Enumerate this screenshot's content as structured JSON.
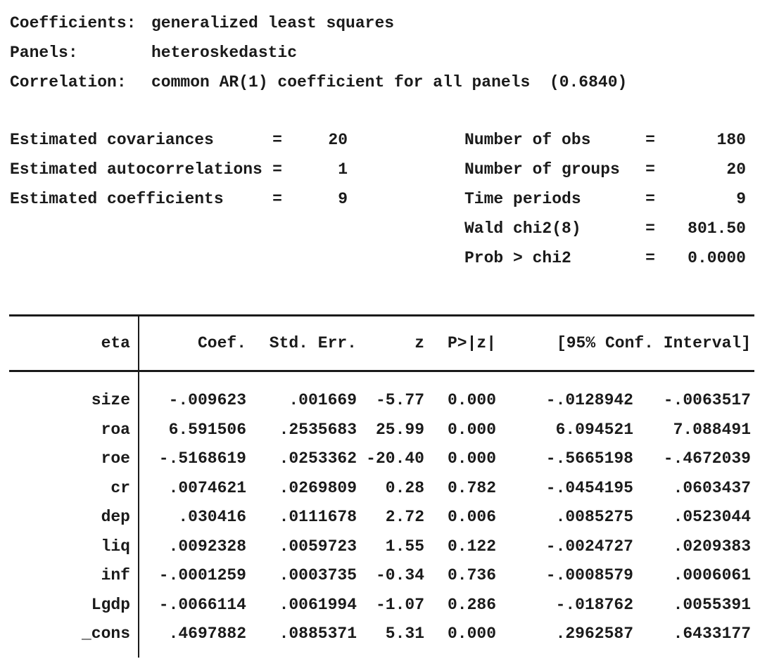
{
  "colors": {
    "text": "#1a1a1a",
    "background": "#ffffff",
    "rule": "#1a1a1a"
  },
  "spec": {
    "rows": [
      {
        "label": "Coefficients:",
        "value": "generalized least squares"
      },
      {
        "label": "Panels:",
        "value": "heteroskedastic"
      },
      {
        "label": "Correlation:",
        "value": "common AR(1) coefficient for all panels  (0.6840)"
      }
    ]
  },
  "stats": {
    "left": [
      {
        "label": "Estimated covariances",
        "eq": "=",
        "value": "20"
      },
      {
        "label": "Estimated autocorrelations",
        "eq": "=",
        "value": "1"
      },
      {
        "label": "Estimated coefficients",
        "eq": "=",
        "value": "9"
      }
    ],
    "right": [
      {
        "label": "Number of obs",
        "eq": "=",
        "value": "180"
      },
      {
        "label": "Number of groups",
        "eq": "=",
        "value": "20"
      },
      {
        "label": "Time periods",
        "eq": "=",
        "value": "9"
      },
      {
        "label": "Wald chi2(8)",
        "eq": "=",
        "value": "801.50"
      },
      {
        "label": "Prob > chi2",
        "eq": "=",
        "value": "0.0000"
      }
    ]
  },
  "table": {
    "depvar": "eta",
    "columns": {
      "coef": "Coef.",
      "stderr": "Std. Err.",
      "z": "z",
      "p": "P>|z|",
      "ci": "[95% Conf. Interval]"
    },
    "rows": [
      {
        "var": "size",
        "coef": "-.009623",
        "stderr": ".001669",
        "z": "-5.77",
        "p": "0.000",
        "ci_low": "-.0128942",
        "ci_high": "-.0063517"
      },
      {
        "var": "roa",
        "coef": "6.591506",
        "stderr": ".2535683",
        "z": "25.99",
        "p": "0.000",
        "ci_low": "6.094521",
        "ci_high": "7.088491"
      },
      {
        "var": "roe",
        "coef": "-.5168619",
        "stderr": ".0253362",
        "z": "-20.40",
        "p": "0.000",
        "ci_low": "-.5665198",
        "ci_high": "-.4672039"
      },
      {
        "var": "cr",
        "coef": ".0074621",
        "stderr": ".0269809",
        "z": "0.28",
        "p": "0.782",
        "ci_low": "-.0454195",
        "ci_high": ".0603437"
      },
      {
        "var": "dep",
        "coef": ".030416",
        "stderr": ".0111678",
        "z": "2.72",
        "p": "0.006",
        "ci_low": ".0085275",
        "ci_high": ".0523044"
      },
      {
        "var": "liq",
        "coef": ".0092328",
        "stderr": ".0059723",
        "z": "1.55",
        "p": "0.122",
        "ci_low": "-.0024727",
        "ci_high": ".0209383"
      },
      {
        "var": "inf",
        "coef": "-.0001259",
        "stderr": ".0003735",
        "z": "-0.34",
        "p": "0.736",
        "ci_low": "-.0008579",
        "ci_high": ".0006061"
      },
      {
        "var": "Lgdp",
        "coef": "-.0066114",
        "stderr": ".0061994",
        "z": "-1.07",
        "p": "0.286",
        "ci_low": "-.018762",
        "ci_high": ".0055391"
      },
      {
        "var": "_cons",
        "coef": ".4697882",
        "stderr": ".0885371",
        "z": "5.31",
        "p": "0.000",
        "ci_low": ".2962587",
        "ci_high": ".6433177"
      }
    ]
  }
}
